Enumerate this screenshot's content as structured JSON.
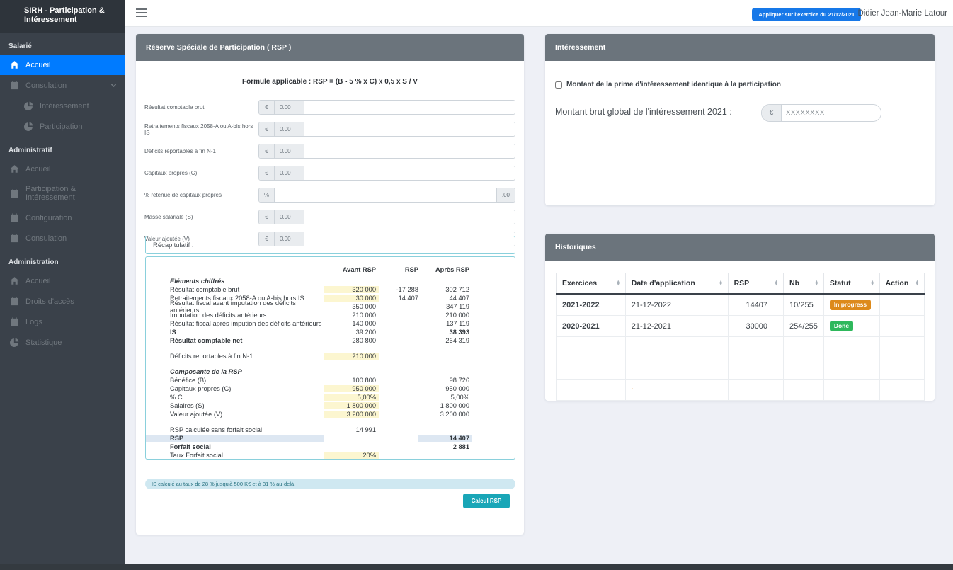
{
  "topbar": {
    "apply_button": "Appliquer sur l'exercice du 21/12/2021",
    "user_name": "Didier Jean-Marie Latour"
  },
  "sidebar": {
    "brand": "SIRH - Participation & Intéressement",
    "sections": [
      {
        "label": "Salarié",
        "items": [
          {
            "label": "Accueil",
            "icon": "home-icon",
            "active": true
          },
          {
            "label": "Consulation",
            "icon": "calendar-icon",
            "chevron": true
          },
          {
            "label": "Intéressement",
            "icon": "pie-chart-icon",
            "sub": true
          },
          {
            "label": "Participation",
            "icon": "pie-chart-icon",
            "sub": true
          }
        ]
      },
      {
        "label": "Administratif",
        "items": [
          {
            "label": "Accueil",
            "icon": "home-icon"
          },
          {
            "label": "Participation & Intéressement",
            "icon": "calendar-icon"
          },
          {
            "label": "Configuration",
            "icon": "calendar-icon"
          },
          {
            "label": "Consulation",
            "icon": "calendar-icon"
          }
        ]
      },
      {
        "label": "Administration",
        "items": [
          {
            "label": "Accueil",
            "icon": "home-icon"
          },
          {
            "label": "Droits d'accès",
            "icon": "calendar-icon"
          },
          {
            "label": "Logs",
            "icon": "calendar-icon"
          },
          {
            "label": "Statistique",
            "icon": "pie-chart-icon"
          }
        ]
      }
    ]
  },
  "rsp_panel": {
    "title": "Réserve Spéciale de Participation ( RSP )",
    "formula": "Formule applicable : RSP = (B - 5 % x C) x 0,5 x S / V",
    "fields": [
      {
        "label": "Résultat comptable brut",
        "prefix": "€",
        "value": "0.00"
      },
      {
        "label": "Retraitements fiscaux 2058-A ou A-bis hors IS",
        "prefix": "€",
        "value": "0.00"
      },
      {
        "label": "Déficits reportables à fin N-1",
        "prefix": "€",
        "value": "0.00"
      },
      {
        "label": "Capitaux propres (C)",
        "prefix": "€",
        "value": "0.00"
      },
      {
        "label": "% retenue de capitaux propres",
        "prefix": "%",
        "value": "",
        "suffix": ".00"
      },
      {
        "label": "Masse salariale (S)",
        "prefix": "€",
        "value": "0.00"
      },
      {
        "label": "Valeur ajoutée (V)",
        "prefix": "€",
        "value": "0.00"
      }
    ],
    "recap": {
      "title": "Récapitulatif :",
      "columns": [
        "Avant RSP",
        "RSP",
        "Après RSP"
      ],
      "rows": [
        {
          "label": "Eléments chiffrés",
          "section": true
        },
        {
          "label": "Résultat comptable brut",
          "avant": "320 000",
          "rsp": "-17 288",
          "apres": "302 712",
          "avant_hl": true
        },
        {
          "label": "Retraitements fiscaux 2058-A ou A-bis hors IS",
          "avant": "30 000",
          "rsp": "14 407",
          "apres": "44 407",
          "avant_hl": true,
          "avant_dot": true,
          "apres_dot": true
        },
        {
          "label": "Résultat fiscal avant imputation des déficits antérieurs",
          "avant": "350 000",
          "apres": "347 119"
        },
        {
          "label": "Imputation des déficits antérieurs",
          "avant": "210 000",
          "apres": "210 000",
          "avant_dot": true,
          "apres_dot": true
        },
        {
          "label": "Résultat fiscal après impution des déficits antérieurs",
          "avant": "140 000",
          "apres": "137 119"
        },
        {
          "label": "IS",
          "avant": "39 200",
          "apres": "38 393",
          "label_bold": true,
          "apres_bold": true,
          "avant_dot": true,
          "apres_dot": true
        },
        {
          "label": "Résultat comptable net",
          "avant": "280 800",
          "apres": "264 319",
          "label_bold": true
        },
        {
          "spacer": true
        },
        {
          "label": "Déficits reportables à fin N-1",
          "avant": "210 000",
          "avant_hl": true
        },
        {
          "spacer": true
        },
        {
          "label": "Composante de la RSP",
          "section": true
        },
        {
          "label": "Bénéfice (B)",
          "avant": "100 800",
          "apres": "98 726"
        },
        {
          "label": "Capitaux propres (C)",
          "avant": "950 000",
          "apres": "950 000",
          "avant_hl": true
        },
        {
          "label": "% C",
          "avant": "5,00%",
          "apres": "5,00%",
          "avant_hl": true
        },
        {
          "label": "Salaires (S)",
          "avant": "1 800 000",
          "apres": "1 800 000",
          "avant_hl": true
        },
        {
          "label": "Valeur ajoutée (V)",
          "avant": "3 200 000",
          "apres": "3 200 000",
          "avant_hl": true
        },
        {
          "spacer": true
        },
        {
          "label": "RSP calculée sans forfait social",
          "avant": "14 991"
        },
        {
          "label": "RSP",
          "apres": "14 407",
          "label_bold": true,
          "apres_bold": true,
          "row_hl": true
        },
        {
          "label": "Forfait social",
          "apres": "2 881",
          "label_bold": true,
          "apres_bold": true
        },
        {
          "label": "Taux Forfait social",
          "avant": "20%",
          "avant_hl": true
        }
      ]
    },
    "note": "IS calculé au taux de 28 % jusqu'à 500 K€ et à 31 % au-delà",
    "calc_button": "Calcul RSP"
  },
  "interessement_panel": {
    "title": "Intéressement",
    "checkbox_label": "Montant de la prime d'intéressement identique à la participation",
    "amount_label": "Montant brut global de l'intéressement 2021 :",
    "amount_prefix": "€",
    "amount_placeholder": "XXXXXXXX"
  },
  "historiques_panel": {
    "title": "Historiques",
    "columns": [
      "Exercices",
      "Date d'application",
      "RSP",
      "Nb",
      "Statut",
      "Action"
    ],
    "rows": [
      {
        "exercice": "2021-2022",
        "date": "21-12-2022",
        "rsp": "14407",
        "nb": "10/255",
        "statut": "In progress",
        "statut_color": "#dd8a1b",
        "action": ""
      },
      {
        "exercice": "2020-2021",
        "date": "21-12-2021",
        "rsp": "30000",
        "nb": "254/255",
        "statut": "Done",
        "statut_color": "#2eb85c",
        "action": ""
      },
      {
        "exercice": "",
        "date": "",
        "rsp": "",
        "nb": "",
        "statut": "",
        "action": ""
      },
      {
        "exercice": "",
        "date": "",
        "rsp": "",
        "nb": "",
        "statut": "",
        "action": ""
      },
      {
        "exercice": "",
        "date": ":",
        "rsp": "",
        "nb": "",
        "statut": "",
        "action": ""
      }
    ]
  },
  "colors": {
    "sidebar_bg": "#3a414a",
    "active_item": "#007bff",
    "panel_header": "#6b747c",
    "apply_button": "#1778e8",
    "calc_button": "#19a6b7",
    "highlight_yellow": "#fcf6d0",
    "highlight_blue": "#dde7f2",
    "badge_in_progress": "#dd8a1b",
    "badge_done": "#2eb85c",
    "note_bg": "#cfe8f1",
    "recap_border": "#8ad0dc"
  }
}
